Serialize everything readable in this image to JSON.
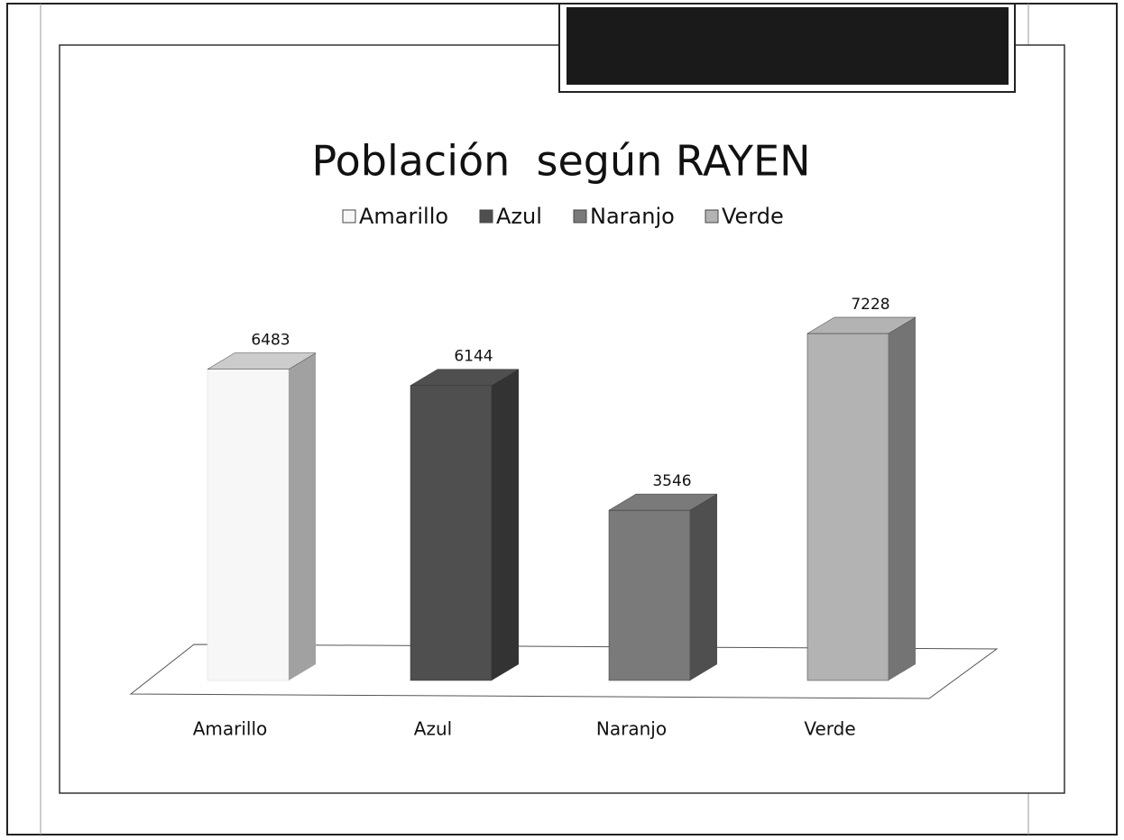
{
  "chart_data": {
    "type": "bar3d",
    "title": "Población  según RAYEN",
    "categories": [
      "Amarillo",
      "Azul",
      "Naranjo",
      "Verde"
    ],
    "values": [
      6483,
      6144,
      3546,
      7228
    ],
    "colors": [
      "#f7f7f7",
      "#4f4f4f",
      "#7a7a7a",
      "#b3b3b3"
    ],
    "legend": true
  }
}
